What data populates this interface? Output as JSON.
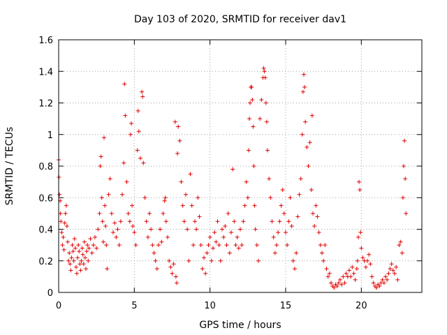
{
  "chart_data": {
    "type": "scatter",
    "title": "Day 103 of 2020, SRMTID for receiver dav1",
    "xlabel": "GPS time / hours",
    "ylabel": "SRMTID / TECUs",
    "xlim": [
      0,
      24
    ],
    "ylim": [
      0,
      1.6
    ],
    "xticks": [
      0,
      5,
      10,
      15,
      20
    ],
    "xtick_labels": [
      "0",
      "5",
      "10",
      "15",
      "20"
    ],
    "yticks": [
      0,
      0.2,
      0.4,
      0.6,
      0.8,
      1,
      1.2,
      1.4,
      1.6
    ],
    "ytick_labels": [
      "0",
      "0.2",
      "0.4",
      "0.6",
      "0.8",
      "1",
      "1.2",
      "1.4",
      "1.6"
    ],
    "grid": true,
    "marker": "+",
    "color": "#e00000",
    "series": [
      {
        "name": "SRMTID",
        "points": [
          [
            0.0,
            0.84
          ],
          [
            0.02,
            0.73
          ],
          [
            0.05,
            0.62
          ],
          [
            0.1,
            0.58
          ],
          [
            0.12,
            0.5
          ],
          [
            0.15,
            0.45
          ],
          [
            0.2,
            0.38
          ],
          [
            0.25,
            0.3
          ],
          [
            0.3,
            0.35
          ],
          [
            0.35,
            0.27
          ],
          [
            0.4,
            0.44
          ],
          [
            0.45,
            0.5
          ],
          [
            0.5,
            0.55
          ],
          [
            0.55,
            0.42
          ],
          [
            0.6,
            0.32
          ],
          [
            0.65,
            0.2
          ],
          [
            0.7,
            0.25
          ],
          [
            0.75,
            0.18
          ],
          [
            0.8,
            0.14
          ],
          [
            0.85,
            0.22
          ],
          [
            0.9,
            0.3
          ],
          [
            0.95,
            0.26
          ],
          [
            1.0,
            0.2
          ],
          [
            1.05,
            0.34
          ],
          [
            1.1,
            0.28
          ],
          [
            1.15,
            0.16
          ],
          [
            1.2,
            0.12
          ],
          [
            1.25,
            0.22
          ],
          [
            1.3,
            0.3
          ],
          [
            1.35,
            0.26
          ],
          [
            1.4,
            0.18
          ],
          [
            1.45,
            0.14
          ],
          [
            1.5,
            0.2
          ],
          [
            1.55,
            0.28
          ],
          [
            1.6,
            0.24
          ],
          [
            1.65,
            0.18
          ],
          [
            1.7,
            0.32
          ],
          [
            1.75,
            0.22
          ],
          [
            1.8,
            0.15
          ],
          [
            1.85,
            0.26
          ],
          [
            1.9,
            0.3
          ],
          [
            1.95,
            0.2
          ],
          [
            2.0,
            0.28
          ],
          [
            2.1,
            0.34
          ],
          [
            2.2,
            0.25
          ],
          [
            2.3,
            0.3
          ],
          [
            2.4,
            0.35
          ],
          [
            2.5,
            0.28
          ],
          [
            2.6,
            0.4
          ],
          [
            2.7,
            0.5
          ],
          [
            2.75,
            0.8
          ],
          [
            2.8,
            0.86
          ],
          [
            2.85,
            0.6
          ],
          [
            2.9,
            0.45
          ],
          [
            2.95,
            0.32
          ],
          [
            3.0,
            0.98
          ],
          [
            3.05,
            0.55
          ],
          [
            3.1,
            0.42
          ],
          [
            3.15,
            0.3
          ],
          [
            3.2,
            0.15
          ],
          [
            3.3,
            0.62
          ],
          [
            3.4,
            0.72
          ],
          [
            3.5,
            0.5
          ],
          [
            3.6,
            0.38
          ],
          [
            3.7,
            0.44
          ],
          [
            3.8,
            0.35
          ],
          [
            3.9,
            0.4
          ],
          [
            4.0,
            0.3
          ],
          [
            4.1,
            0.45
          ],
          [
            4.2,
            0.62
          ],
          [
            4.3,
            0.82
          ],
          [
            4.35,
            1.32
          ],
          [
            4.4,
            1.12
          ],
          [
            4.5,
            0.7
          ],
          [
            4.6,
            0.5
          ],
          [
            4.7,
            0.45
          ],
          [
            4.75,
            1.0
          ],
          [
            4.8,
            1.07
          ],
          [
            4.85,
            0.55
          ],
          [
            4.9,
            0.42
          ],
          [
            5.0,
            0.38
          ],
          [
            5.1,
            0.3
          ],
          [
            5.2,
            0.9
          ],
          [
            5.25,
            1.15
          ],
          [
            5.3,
            1.02
          ],
          [
            5.4,
            0.85
          ],
          [
            5.5,
            1.27
          ],
          [
            5.55,
            1.24
          ],
          [
            5.6,
            0.82
          ],
          [
            5.7,
            0.6
          ],
          [
            5.8,
            0.45
          ],
          [
            5.9,
            0.35
          ],
          [
            6.0,
            0.5
          ],
          [
            6.1,
            0.4
          ],
          [
            6.2,
            0.3
          ],
          [
            6.3,
            0.25
          ],
          [
            6.4,
            0.2
          ],
          [
            6.5,
            0.15
          ],
          [
            6.6,
            0.3
          ],
          [
            6.7,
            0.4
          ],
          [
            6.8,
            0.32
          ],
          [
            6.9,
            0.5
          ],
          [
            7.0,
            0.58
          ],
          [
            7.05,
            0.6
          ],
          [
            7.1,
            0.45
          ],
          [
            7.2,
            0.35
          ],
          [
            7.3,
            0.2
          ],
          [
            7.4,
            0.16
          ],
          [
            7.5,
            0.12
          ],
          [
            7.6,
            0.18
          ],
          [
            7.7,
            1.08
          ],
          [
            7.75,
            0.1
          ],
          [
            7.8,
            0.06
          ],
          [
            7.85,
            0.88
          ],
          [
            7.9,
            1.05
          ],
          [
            8.0,
            0.96
          ],
          [
            8.1,
            0.7
          ],
          [
            8.2,
            0.55
          ],
          [
            8.3,
            0.45
          ],
          [
            8.4,
            0.62
          ],
          [
            8.5,
            0.4
          ],
          [
            8.6,
            0.2
          ],
          [
            8.7,
            0.75
          ],
          [
            8.8,
            0.55
          ],
          [
            8.9,
            0.3
          ],
          [
            9.0,
            0.45
          ],
          [
            9.1,
            0.4
          ],
          [
            9.2,
            0.6
          ],
          [
            9.3,
            0.48
          ],
          [
            9.4,
            0.3
          ],
          [
            9.5,
            0.15
          ],
          [
            9.6,
            0.22
          ],
          [
            9.7,
            0.12
          ],
          [
            9.8,
            0.25
          ],
          [
            9.9,
            0.3
          ],
          [
            10.0,
            0.35
          ],
          [
            10.1,
            0.2
          ],
          [
            10.2,
            0.28
          ],
          [
            10.3,
            0.38
          ],
          [
            10.4,
            0.32
          ],
          [
            10.5,
            0.45
          ],
          [
            10.6,
            0.3
          ],
          [
            10.7,
            0.2
          ],
          [
            10.8,
            0.4
          ],
          [
            10.9,
            0.35
          ],
          [
            11.0,
            0.42
          ],
          [
            11.1,
            0.3
          ],
          [
            11.2,
            0.5
          ],
          [
            11.3,
            0.25
          ],
          [
            11.4,
            0.38
          ],
          [
            11.5,
            0.78
          ],
          [
            11.6,
            0.45
          ],
          [
            11.7,
            0.3
          ],
          [
            11.8,
            0.35
          ],
          [
            11.9,
            0.28
          ],
          [
            12.0,
            0.4
          ],
          [
            12.1,
            0.3
          ],
          [
            12.2,
            0.45
          ],
          [
            12.3,
            0.55
          ],
          [
            12.4,
            0.7
          ],
          [
            12.5,
            0.6
          ],
          [
            12.55,
            0.9
          ],
          [
            12.6,
            1.1
          ],
          [
            12.65,
            1.2
          ],
          [
            12.7,
            1.3
          ],
          [
            12.75,
            1.3
          ],
          [
            12.8,
            1.22
          ],
          [
            12.85,
            1.05
          ],
          [
            12.9,
            0.8
          ],
          [
            12.95,
            0.55
          ],
          [
            13.0,
            0.4
          ],
          [
            13.1,
            0.3
          ],
          [
            13.2,
            0.2
          ],
          [
            13.3,
            1.1
          ],
          [
            13.4,
            1.22
          ],
          [
            13.5,
            1.36
          ],
          [
            13.55,
            1.42
          ],
          [
            13.6,
            1.4
          ],
          [
            13.65,
            1.36
          ],
          [
            13.7,
            1.2
          ],
          [
            13.75,
            1.08
          ],
          [
            13.8,
            0.9
          ],
          [
            13.9,
            0.72
          ],
          [
            14.0,
            0.6
          ],
          [
            14.1,
            0.45
          ],
          [
            14.2,
            0.35
          ],
          [
            14.3,
            0.25
          ],
          [
            14.4,
            0.3
          ],
          [
            14.5,
            0.38
          ],
          [
            14.6,
            0.45
          ],
          [
            14.7,
            0.55
          ],
          [
            14.8,
            0.65
          ],
          [
            14.9,
            0.5
          ],
          [
            15.0,
            0.38
          ],
          [
            15.1,
            0.3
          ],
          [
            15.2,
            0.45
          ],
          [
            15.3,
            0.6
          ],
          [
            15.4,
            0.42
          ],
          [
            15.5,
            0.2
          ],
          [
            15.6,
            0.15
          ],
          [
            15.7,
            0.25
          ],
          [
            15.8,
            0.48
          ],
          [
            15.9,
            0.62
          ],
          [
            16.0,
            0.72
          ],
          [
            16.1,
            1.0
          ],
          [
            16.15,
            1.27
          ],
          [
            16.2,
            1.38
          ],
          [
            16.25,
            1.3
          ],
          [
            16.3,
            1.08
          ],
          [
            16.4,
            0.92
          ],
          [
            16.5,
            0.8
          ],
          [
            16.6,
            0.95
          ],
          [
            16.7,
            0.65
          ],
          [
            16.75,
            1.12
          ],
          [
            16.8,
            0.5
          ],
          [
            16.9,
            0.42
          ],
          [
            17.0,
            0.55
          ],
          [
            17.1,
            0.48
          ],
          [
            17.2,
            0.38
          ],
          [
            17.3,
            0.3
          ],
          [
            17.4,
            0.25
          ],
          [
            17.5,
            0.2
          ],
          [
            17.6,
            0.3
          ],
          [
            17.7,
            0.15
          ],
          [
            17.8,
            0.1
          ],
          [
            17.9,
            0.12
          ],
          [
            18.0,
            0.06
          ],
          [
            18.1,
            0.04
          ],
          [
            18.2,
            0.03
          ],
          [
            18.3,
            0.05
          ],
          [
            18.4,
            0.04
          ],
          [
            18.5,
            0.06
          ],
          [
            18.6,
            0.08
          ],
          [
            18.7,
            0.05
          ],
          [
            18.8,
            0.1
          ],
          [
            18.9,
            0.06
          ],
          [
            19.0,
            0.12
          ],
          [
            19.1,
            0.1
          ],
          [
            19.2,
            0.14
          ],
          [
            19.3,
            0.1
          ],
          [
            19.4,
            0.16
          ],
          [
            19.5,
            0.12
          ],
          [
            19.6,
            0.08
          ],
          [
            19.7,
            0.15
          ],
          [
            19.75,
            0.2
          ],
          [
            19.8,
            0.35
          ],
          [
            19.85,
            0.7
          ],
          [
            19.9,
            0.65
          ],
          [
            19.95,
            0.38
          ],
          [
            20.0,
            0.28
          ],
          [
            20.1,
            0.22
          ],
          [
            20.2,
            0.2
          ],
          [
            20.3,
            0.16
          ],
          [
            20.4,
            0.2
          ],
          [
            20.5,
            0.24
          ],
          [
            20.6,
            0.18
          ],
          [
            20.7,
            0.1
          ],
          [
            20.8,
            0.06
          ],
          [
            20.9,
            0.04
          ],
          [
            21.0,
            0.03
          ],
          [
            21.1,
            0.05
          ],
          [
            21.2,
            0.04
          ],
          [
            21.3,
            0.06
          ],
          [
            21.4,
            0.08
          ],
          [
            21.5,
            0.06
          ],
          [
            21.6,
            0.1
          ],
          [
            21.7,
            0.08
          ],
          [
            21.8,
            0.12
          ],
          [
            21.9,
            0.15
          ],
          [
            22.0,
            0.18
          ],
          [
            22.1,
            0.14
          ],
          [
            22.2,
            0.12
          ],
          [
            22.3,
            0.16
          ],
          [
            22.4,
            0.08
          ],
          [
            22.5,
            0.3
          ],
          [
            22.6,
            0.32
          ],
          [
            22.7,
            0.25
          ],
          [
            22.75,
            0.6
          ],
          [
            22.8,
            0.8
          ],
          [
            22.85,
            0.96
          ],
          [
            22.9,
            0.72
          ],
          [
            22.95,
            0.5
          ]
        ]
      }
    ]
  }
}
